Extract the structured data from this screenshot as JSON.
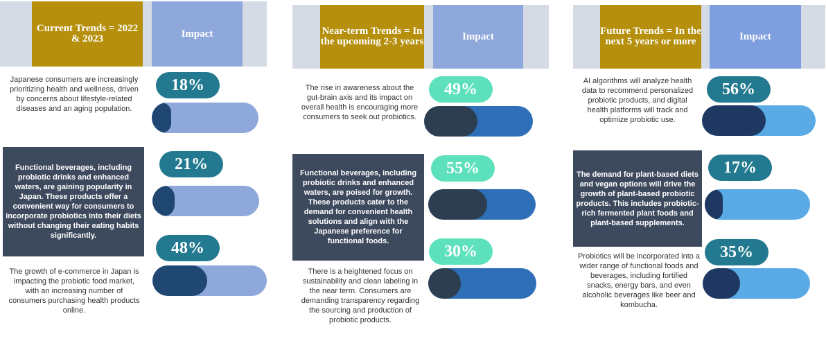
{
  "headers": [
    {
      "title": "Current Trends = 2022 & 2023",
      "impact": "Impact"
    },
    {
      "title": "Near-term Trends = In the upcoming 2-3 years",
      "impact": "Impact"
    },
    {
      "title": "Future Trends = In the next 5 years or more",
      "impact": "Impact"
    }
  ],
  "columns": [
    {
      "items": [
        {
          "text": "Japanese consumers are increasingly prioritizing health and wellness, driven by concerns about lifestyle-related diseases and an aging population.",
          "percent": "18%",
          "value": 18,
          "highlight": false
        },
        {
          "text": "Functional beverages, including probiotic drinks and enhanced waters, are gaining popularity in Japan. These products offer a convenient way for consumers to incorporate probiotics into their diets without changing their eating habits significantly.",
          "percent": "21%",
          "value": 21,
          "highlight": true
        },
        {
          "text": "The growth of e-commerce in Japan is impacting the probiotic food market, with an increasing number of consumers purchasing health products online.",
          "percent": "48%",
          "value": 48,
          "highlight": false
        }
      ]
    },
    {
      "items": [
        {
          "text": "The rise in awareness about the gut-brain axis and its impact on overall health is encouraging more consumers to seek out probiotics.",
          "percent": "49%",
          "value": 49,
          "highlight": false
        },
        {
          "text": "Functional beverages, including probiotic drinks and enhanced waters, are poised for growth. These products cater to the demand for convenient health solutions and align with the Japanese preference for functional foods.",
          "percent": "55%",
          "value": 55,
          "highlight": true
        },
        {
          "text": "There is a heightened focus on sustainability and clean labeling in the near term. Consumers are demanding transparency regarding the sourcing and production of probiotic products.",
          "percent": "30%",
          "value": 30,
          "highlight": false
        }
      ]
    },
    {
      "items": [
        {
          "text": "AI algorithms will analyze health data to recommend personalized probiotic products, and digital health platforms will track and optimize probiotic use.",
          "percent": "56%",
          "value": 56,
          "highlight": false
        },
        {
          "text": "The demand for plant-based diets and vegan options will drive the growth of plant-based probiotic products. This includes probiotic-rich fermented plant foods and plant-based supplements.",
          "percent": "17%",
          "value": 17,
          "highlight": true
        },
        {
          "text": "Probiotics will be incorporated into a wider range of functional foods and beverages, including fortified snacks, energy bars, and even alcoholic beverages like beer and kombucha.",
          "percent": "35%",
          "value": 35,
          "highlight": false
        }
      ]
    }
  ],
  "colors": {
    "header_title_bg": "#b68f0c",
    "header_side_bg": "#d5dbe4",
    "col1_impact_bg": "#8fa8db",
    "col2_impact_bg": "#8fa8db",
    "col3_impact_bg": "#7f9edf",
    "col1_pill_bg": "#23798f",
    "col1_pill_text": "#ffffff",
    "col1_bar_track": "#8fa8db",
    "col1_bar_fill": "#1f4771",
    "col2_pill_bg": "#5de0bc",
    "col2_pill_text": "#ffffff",
    "col2_bar_track": "#2f6fb8",
    "col2_bar_fill": "#2d3e50",
    "col3_pill_bg": "#23798f",
    "col3_pill_text": "#ffffff",
    "col3_bar_track": "#5aaae6",
    "col3_bar_fill": "#1f3862",
    "highlight_bg": "#3d4a5e"
  }
}
